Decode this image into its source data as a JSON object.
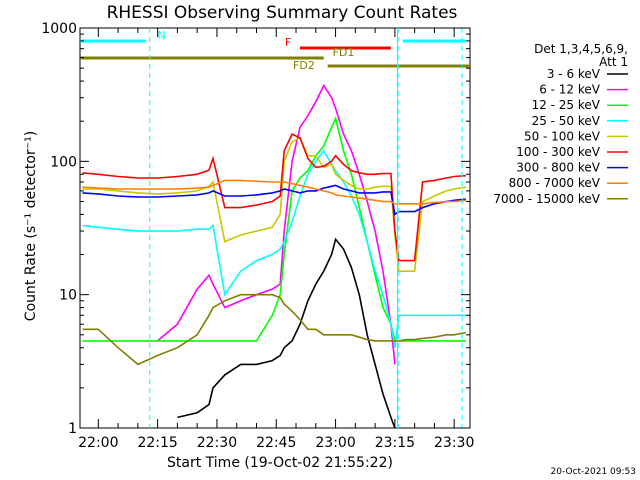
{
  "chart_data": {
    "type": "line",
    "title": "RHESSI Observing Summary Count Rates",
    "xlabel": "Start Time (19-Oct-02 21:55:22)",
    "ylabel": "Count Rate (s⁻¹ detector⁻¹)",
    "y_scale": "log",
    "ylim": [
      1,
      1000
    ],
    "xlim": [
      "21:55:22",
      "23:34:00"
    ],
    "x_ticks": [
      "22:00",
      "22:15",
      "22:30",
      "22:45",
      "23:00",
      "23:15",
      "23:30"
    ],
    "y_ticks": [
      "1",
      "10",
      "100",
      "1000"
    ],
    "legend_header": [
      "Det 1,3,4,5,6,9,",
      "Att 1"
    ],
    "legend_position": "right",
    "timestamp": "20-Oct-2021 09:53",
    "flags": [
      {
        "label": "N",
        "color": "#00ffff",
        "segments": [
          [
            "21:55:22",
            "22:12"
          ],
          [
            "23:17",
            "23:33"
          ]
        ]
      },
      {
        "label": "F",
        "color": "#ff0000",
        "segments": [
          [
            "22:51",
            "23:14"
          ]
        ]
      },
      {
        "label": "FD1",
        "color": "#808000",
        "segments": [
          [
            "21:55:22",
            "22:57"
          ]
        ]
      },
      {
        "label": "FD2",
        "color": "#808000",
        "segments": [
          [
            "22:58",
            "23:34"
          ]
        ]
      }
    ],
    "time_markers": [
      "22:13",
      "23:16",
      "23:32"
    ],
    "times": [
      "21:56",
      "22:00",
      "22:05",
      "22:10",
      "22:15",
      "22:20",
      "22:25",
      "22:28",
      "22:29",
      "22:32",
      "22:36",
      "22:40",
      "22:44",
      "22:46",
      "22:47",
      "22:49",
      "22:51",
      "22:53",
      "22:55",
      "22:57",
      "22:59",
      "23:00",
      "23:02",
      "23:04",
      "23:06",
      "23:08",
      "23:10",
      "23:12",
      "23:14",
      "23:15",
      "23:16",
      "23:18",
      "23:20",
      "23:22",
      "23:25",
      "23:28",
      "23:30",
      "23:33"
    ],
    "series": [
      {
        "name": "3 - 6 keV",
        "color": "#000000",
        "values": [
          null,
          null,
          null,
          null,
          null,
          1.2,
          1.3,
          1.5,
          2,
          2.5,
          3,
          3,
          3.2,
          3.5,
          4,
          4.5,
          6,
          9,
          12,
          15,
          20,
          26,
          22,
          16,
          10,
          5,
          3,
          1.8,
          1.2,
          1,
          null,
          null,
          null,
          null,
          null,
          null,
          null,
          null
        ]
      },
      {
        "name": "6 - 12 keV",
        "color": "#ff00ff",
        "values": [
          null,
          null,
          null,
          null,
          4.5,
          6,
          11,
          14,
          12,
          8,
          9,
          10,
          11,
          12,
          30,
          100,
          180,
          220,
          280,
          370,
          300,
          250,
          160,
          120,
          80,
          50,
          30,
          15,
          6,
          3,
          null,
          null,
          null,
          null,
          null,
          null,
          null,
          null
        ]
      },
      {
        "name": "12 - 25 keV",
        "color": "#00ff00",
        "values": [
          4.5,
          4.5,
          4.5,
          4.5,
          4.5,
          4.5,
          4.5,
          4.5,
          4.5,
          4.5,
          4.5,
          4.5,
          7,
          10,
          20,
          60,
          75,
          85,
          110,
          130,
          180,
          210,
          120,
          80,
          45,
          25,
          14,
          8,
          6,
          4.5,
          4.5,
          4.5,
          4.5,
          4.5,
          4.5,
          4.5,
          4.5,
          4.5
        ]
      },
      {
        "name": "25 - 50 keV",
        "color": "#00ffff",
        "values": [
          33,
          32,
          31,
          30,
          30,
          30,
          31,
          31,
          33,
          10,
          15,
          18,
          20,
          22,
          25,
          35,
          55,
          80,
          100,
          120,
          95,
          85,
          70,
          55,
          40,
          25,
          15,
          10,
          6,
          4,
          7,
          7,
          7,
          7,
          7,
          7,
          7,
          7
        ]
      },
      {
        "name": "50 - 100 keV",
        "color": "#c8c800",
        "values": [
          62,
          62,
          60,
          58,
          57,
          58,
          60,
          65,
          70,
          25,
          28,
          30,
          32,
          40,
          100,
          140,
          150,
          110,
          110,
          90,
          95,
          80,
          72,
          66,
          62,
          62,
          64,
          65,
          65,
          28,
          15,
          15,
          15,
          50,
          55,
          60,
          62,
          64
        ]
      },
      {
        "name": "100 - 300 keV",
        "color": "#ff0000",
        "values": [
          82,
          80,
          77,
          75,
          75,
          77,
          80,
          86,
          105,
          45,
          45,
          47,
          50,
          55,
          120,
          160,
          150,
          105,
          90,
          92,
          100,
          110,
          95,
          85,
          82,
          80,
          80,
          81,
          81,
          30,
          18,
          18,
          18,
          70,
          72,
          75,
          77,
          78
        ]
      },
      {
        "name": "300 - 800 keV",
        "color": "#0000ff",
        "values": [
          58,
          57,
          55,
          54,
          54,
          55,
          56,
          58,
          60,
          55,
          55,
          56,
          58,
          60,
          62,
          60,
          58,
          60,
          60,
          63,
          65,
          66,
          62,
          60,
          58,
          58,
          58,
          59,
          59,
          40,
          42,
          42,
          42,
          45,
          48,
          50,
          51,
          52
        ]
      },
      {
        "name": "800 - 7000 keV",
        "color": "#ff8000",
        "values": [
          64,
          63,
          62,
          62,
          62,
          62,
          63,
          64,
          66,
          72,
          72,
          71,
          70,
          70,
          70,
          68,
          66,
          64,
          62,
          60,
          58,
          56,
          55,
          54,
          53,
          52,
          51,
          50,
          50,
          48,
          48,
          48,
          48,
          48,
          49,
          50,
          50,
          51
        ]
      },
      {
        "name": "7000 - 15000 keV",
        "color": "#808000",
        "values": [
          5.5,
          5.5,
          4,
          3,
          3.5,
          4,
          5,
          7,
          8,
          9,
          10,
          10,
          10,
          9.5,
          8.5,
          7.5,
          6.5,
          5.5,
          5.5,
          5,
          5,
          5,
          5,
          5,
          4.8,
          4.6,
          4.5,
          4.5,
          4.5,
          4.5,
          4.5,
          4.6,
          4.6,
          4.7,
          4.8,
          5,
          5,
          5.2
        ]
      }
    ]
  }
}
